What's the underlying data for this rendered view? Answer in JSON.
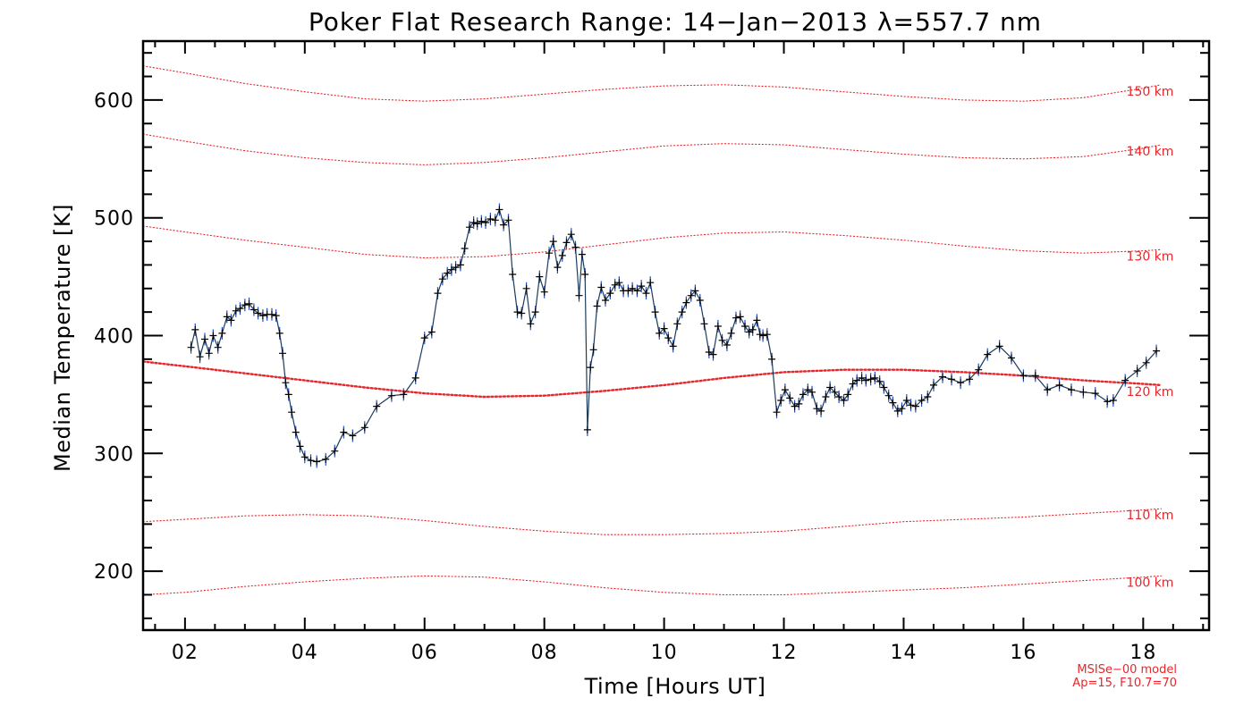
{
  "chart_data": {
    "type": "line",
    "title": "Poker Flat Research Range: 14−Jan−2013 λ=557.7 nm",
    "xlabel": "Time [Hours UT]",
    "ylabel": "Median Temperature [K]",
    "xlim": [
      1.3,
      19.1
    ],
    "ylim": [
      150,
      650
    ],
    "x_ticks": [
      2,
      4,
      6,
      8,
      10,
      12,
      14,
      16,
      18
    ],
    "x_tick_labels": [
      "02",
      "04",
      "06",
      "08",
      "10",
      "12",
      "14",
      "16",
      "18"
    ],
    "y_ticks": [
      200,
      300,
      400,
      500,
      600
    ],
    "y_tick_labels": [
      "200",
      "300",
      "400",
      "500",
      "600"
    ],
    "grid": false,
    "series": [
      {
        "style": "black line with '+' markers and blue error bars",
        "color": "#000000",
        "marker": "+",
        "errorbar_color": "#1e4ec8",
        "x": [
          2.1,
          2.17,
          2.25,
          2.33,
          2.4,
          2.47,
          2.55,
          2.62,
          2.7,
          2.77,
          2.85,
          2.92,
          3.0,
          3.07,
          3.15,
          3.22,
          3.3,
          3.37,
          3.45,
          3.52,
          3.58,
          3.63,
          3.68,
          3.73,
          3.78,
          3.85,
          3.92,
          4.0,
          4.1,
          4.2,
          4.35,
          4.5,
          4.65,
          4.8,
          5.0,
          5.2,
          5.45,
          5.65,
          5.85,
          6.0,
          6.12,
          6.22,
          6.3,
          6.38,
          6.45,
          6.52,
          6.6,
          6.67,
          6.75,
          6.82,
          6.88,
          6.95,
          7.02,
          7.1,
          7.18,
          7.25,
          7.32,
          7.4,
          7.47,
          7.55,
          7.62,
          7.7,
          7.77,
          7.85,
          7.92,
          8.0,
          8.08,
          8.15,
          8.22,
          8.3,
          8.37,
          8.45,
          8.52,
          8.58,
          8.63,
          8.68,
          8.72,
          8.77,
          8.82,
          8.88,
          8.95,
          9.02,
          9.1,
          9.18,
          9.25,
          9.32,
          9.4,
          9.47,
          9.55,
          9.62,
          9.7,
          9.77,
          9.85,
          9.92,
          10.0,
          10.07,
          10.15,
          10.22,
          10.3,
          10.37,
          10.45,
          10.52,
          10.6,
          10.67,
          10.75,
          10.82,
          10.9,
          10.97,
          11.05,
          11.12,
          11.2,
          11.27,
          11.35,
          11.42,
          11.48,
          11.55,
          11.6,
          11.65,
          11.72,
          11.8,
          11.88,
          11.95,
          12.02,
          12.1,
          12.18,
          12.25,
          12.32,
          12.4,
          12.47,
          12.55,
          12.62,
          12.7,
          12.77,
          12.85,
          12.92,
          13.0,
          13.07,
          13.15,
          13.22,
          13.3,
          13.37,
          13.45,
          13.52,
          13.6,
          13.67,
          13.75,
          13.82,
          13.9,
          13.97,
          14.05,
          14.12,
          14.2,
          14.3,
          14.4,
          14.5,
          14.65,
          14.8,
          14.95,
          15.1,
          15.25,
          15.4,
          15.6,
          15.8,
          16.0,
          16.2,
          16.4,
          16.6,
          16.8,
          17.0,
          17.2,
          17.4,
          17.5,
          17.7,
          17.9,
          18.05,
          18.22
        ],
        "y": [
          390,
          405,
          382,
          397,
          385,
          400,
          390,
          402,
          416,
          413,
          421,
          423,
          426,
          427,
          422,
          419,
          417,
          418,
          418,
          417,
          402,
          385,
          360,
          350,
          335,
          318,
          306,
          297,
          294,
          293,
          295,
          302,
          318,
          315,
          322,
          340,
          349,
          350,
          364,
          398,
          403,
          436,
          448,
          453,
          456,
          458,
          460,
          474,
          492,
          496,
          495,
          497,
          496,
          499,
          498,
          507,
          494,
          498,
          452,
          420,
          419,
          440,
          410,
          420,
          450,
          437,
          470,
          480,
          458,
          468,
          479,
          486,
          475,
          434,
          469,
          452,
          320,
          373,
          388,
          425,
          441,
          430,
          436,
          443,
          445,
          438,
          438,
          440,
          438,
          442,
          436,
          445,
          420,
          402,
          406,
          398,
          391,
          410,
          420,
          428,
          434,
          438,
          430,
          410,
          386,
          384,
          408,
          396,
          392,
          402,
          415,
          416,
          408,
          403,
          405,
          413,
          401,
          400,
          401,
          380,
          335,
          345,
          354,
          347,
          340,
          342,
          350,
          354,
          352,
          338,
          336,
          348,
          356,
          352,
          348,
          345,
          350,
          359,
          362,
          364,
          362,
          363,
          364,
          361,
          356,
          349,
          343,
          336,
          338,
          345,
          341,
          340,
          345,
          348,
          358,
          365,
          363,
          360,
          363,
          371,
          384,
          391,
          381,
          366,
          366,
          354,
          358,
          354,
          352,
          351,
          344,
          345,
          362,
          370,
          377,
          387
        ]
      }
    ],
    "model_curves": {
      "source": "MSISe−00 model",
      "params": "Ap=15, F10.7=70",
      "color": "#e8262b",
      "x": [
        1.3,
        2.0,
        3.0,
        4.0,
        5.0,
        6.0,
        7.0,
        8.0,
        9.0,
        10.0,
        11.0,
        12.0,
        13.0,
        14.0,
        15.0,
        16.0,
        17.0,
        18.0,
        18.3
      ],
      "curves": [
        {
          "label": "150 km",
          "y": [
            629,
            623,
            614,
            607,
            601,
            599,
            601,
            605,
            609,
            612,
            613,
            611,
            607,
            603,
            600,
            599,
            602,
            610,
            613
          ]
        },
        {
          "label": "140 km",
          "y": [
            571,
            565,
            557,
            551,
            547,
            545,
            547,
            551,
            556,
            561,
            563,
            562,
            558,
            554,
            551,
            550,
            552,
            559,
            562
          ]
        },
        {
          "label": "130 km",
          "y": [
            493,
            488,
            481,
            475,
            469,
            466,
            467,
            471,
            477,
            483,
            487,
            488,
            485,
            481,
            476,
            472,
            470,
            472,
            473
          ]
        },
        {
          "label": "120 km",
          "y": [
            378,
            374,
            368,
            362,
            356,
            351,
            348,
            349,
            353,
            358,
            364,
            369,
            371,
            371,
            369,
            366,
            362,
            359,
            358
          ]
        },
        {
          "label": "110 km",
          "y": [
            242,
            244,
            247,
            248,
            247,
            243,
            238,
            234,
            231,
            231,
            232,
            234,
            238,
            242,
            244,
            246,
            249,
            252,
            253
          ]
        },
        {
          "label": "100 km",
          "y": [
            180,
            182,
            187,
            191,
            194,
            196,
            195,
            191,
            186,
            182,
            180,
            180,
            182,
            184,
            186,
            189,
            192,
            195,
            196
          ]
        }
      ],
      "bold_label": "120 km"
    }
  }
}
